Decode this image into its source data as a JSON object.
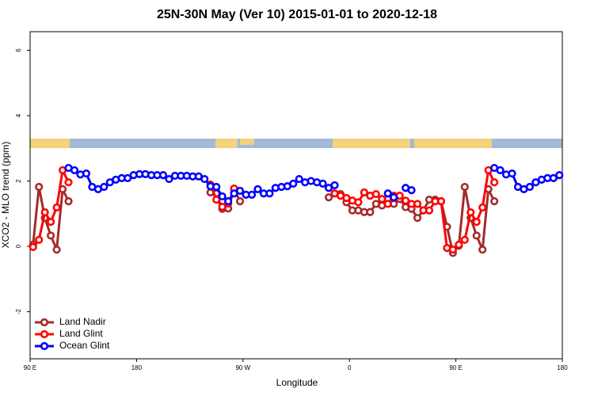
{
  "chart_data": {
    "type": "line",
    "title": "25N-30N May (Ver 10)   2015-01-01 to 2020-12-18",
    "x_label": "Longitude",
    "y_label": "XCO2 - MLO trend (ppm)",
    "xlim": [
      90,
      540
    ],
    "ylim": [
      -3.44,
      6.57
    ],
    "xticks": [
      {
        "value": 90,
        "label": "90 E"
      },
      180,
      {
        "value": 270,
        "label": "90 W"
      },
      {
        "value": 360,
        "label": "0"
      },
      {
        "value": 450,
        "label": "90 E"
      },
      {
        "value": 540,
        "label": "180"
      }
    ],
    "yticks": [
      -2,
      0,
      2,
      4,
      6
    ],
    "legend": "bottom-left",
    "series": [
      {
        "name": "Land Nadir",
        "color": "#a52a2a",
        "x": [
          92.5,
          97.5,
          102.5,
          107.5,
          112.5,
          117.5,
          122.5,
          null,
          242.5,
          247.5,
          252.5,
          257.5,
          262.5,
          267.5,
          null,
          342.5,
          347.5,
          352.5,
          357.5,
          362.5,
          367.5,
          372.5,
          377.5,
          382.5,
          387.5,
          392.5,
          397.5,
          402.5,
          407.5,
          412.5,
          417.5,
          422.5,
          427.5,
          432.5,
          437.5,
          442.5,
          447.5,
          452.5,
          457.5,
          462.5,
          467.5,
          472.5,
          477.5,
          482.5
        ],
        "values": [
          0.05,
          1.82,
          0.87,
          0.33,
          -0.1,
          1.75,
          1.38,
          null,
          1.65,
          1.62,
          1.15,
          1.16,
          1.75,
          1.38,
          null,
          1.5,
          1.62,
          1.6,
          1.35,
          1.1,
          1.1,
          1.05,
          1.05,
          1.3,
          1.25,
          1.45,
          1.3,
          1.45,
          1.2,
          1.15,
          0.87,
          1.1,
          1.43,
          1.43,
          1.38,
          0.6,
          -0.2,
          0.02,
          1.82,
          0.87,
          0.33,
          -0.1,
          1.75,
          1.38
        ]
      },
      {
        "name": "Land Glint",
        "color": "#ff0000",
        "x": [
          92.5,
          97.5,
          102.5,
          107.5,
          112.5,
          117.5,
          122.5,
          null,
          242.5,
          247.5,
          252.5,
          257.5,
          262.5,
          null,
          347.5,
          352.5,
          357.5,
          362.5,
          367.5,
          372.5,
          377.5,
          382.5,
          387.5,
          392.5,
          397.5,
          402.5,
          407.5,
          412.5,
          417.5,
          422.5,
          427.5,
          432.5,
          437.5,
          442.5,
          447.5,
          452.5,
          457.5,
          462.5,
          467.5,
          472.5,
          477.5,
          482.5
        ],
        "values": [
          -0.02,
          0.2,
          1.04,
          0.75,
          1.19,
          2.33,
          1.96,
          null,
          1.89,
          1.43,
          1.21,
          1.31,
          1.77,
          null,
          1.62,
          1.55,
          1.48,
          1.4,
          1.35,
          1.65,
          1.55,
          1.6,
          1.45,
          1.3,
          1.55,
          1.55,
          1.4,
          1.3,
          1.3,
          1.1,
          1.1,
          1.38,
          1.38,
          -0.05,
          -0.1,
          0.05,
          0.2,
          1.04,
          0.75,
          1.19,
          2.33,
          1.96
        ]
      },
      {
        "name": "Ocean Glint",
        "color": "#0000ff",
        "x": [
          122.5,
          127.5,
          132.5,
          137.5,
          142.5,
          147.5,
          152.5,
          157.5,
          162.5,
          167.5,
          172.5,
          177.5,
          182.5,
          187.5,
          192.5,
          197.5,
          202.5,
          207.5,
          212.5,
          217.5,
          222.5,
          227.5,
          232.5,
          237.5,
          242.5,
          247.5,
          252.5,
          257.5,
          262.5,
          267.5,
          272.5,
          277.5,
          282.5,
          287.5,
          292.5,
          297.5,
          302.5,
          307.5,
          312.5,
          317.5,
          322.5,
          327.5,
          332.5,
          337.5,
          342.5,
          347.5,
          null,
          392.5,
          397.5,
          null,
          407.5,
          412.5,
          null,
          482.5,
          487.5,
          492.5,
          497.5,
          502.5,
          507.5,
          512.5,
          517.5,
          522.5,
          527.5,
          532.5,
          537.5
        ],
        "values": [
          2.4,
          2.33,
          2.2,
          2.23,
          1.82,
          1.75,
          1.82,
          1.96,
          2.04,
          2.09,
          2.09,
          2.18,
          2.21,
          2.21,
          2.18,
          2.18,
          2.18,
          2.06,
          2.16,
          2.16,
          2.16,
          2.14,
          2.14,
          2.06,
          1.84,
          1.82,
          1.53,
          1.38,
          1.62,
          1.7,
          1.58,
          1.58,
          1.75,
          1.62,
          1.62,
          1.79,
          1.82,
          1.84,
          1.92,
          2.06,
          1.96,
          2.0,
          1.96,
          1.92,
          1.79,
          1.87,
          null,
          1.62,
          1.5,
          null,
          1.79,
          1.72,
          null,
          2.4,
          2.33,
          2.2,
          2.23,
          1.82,
          1.75,
          1.82,
          1.96,
          2.04,
          2.09,
          2.09,
          2.18
        ]
      }
    ]
  }
}
